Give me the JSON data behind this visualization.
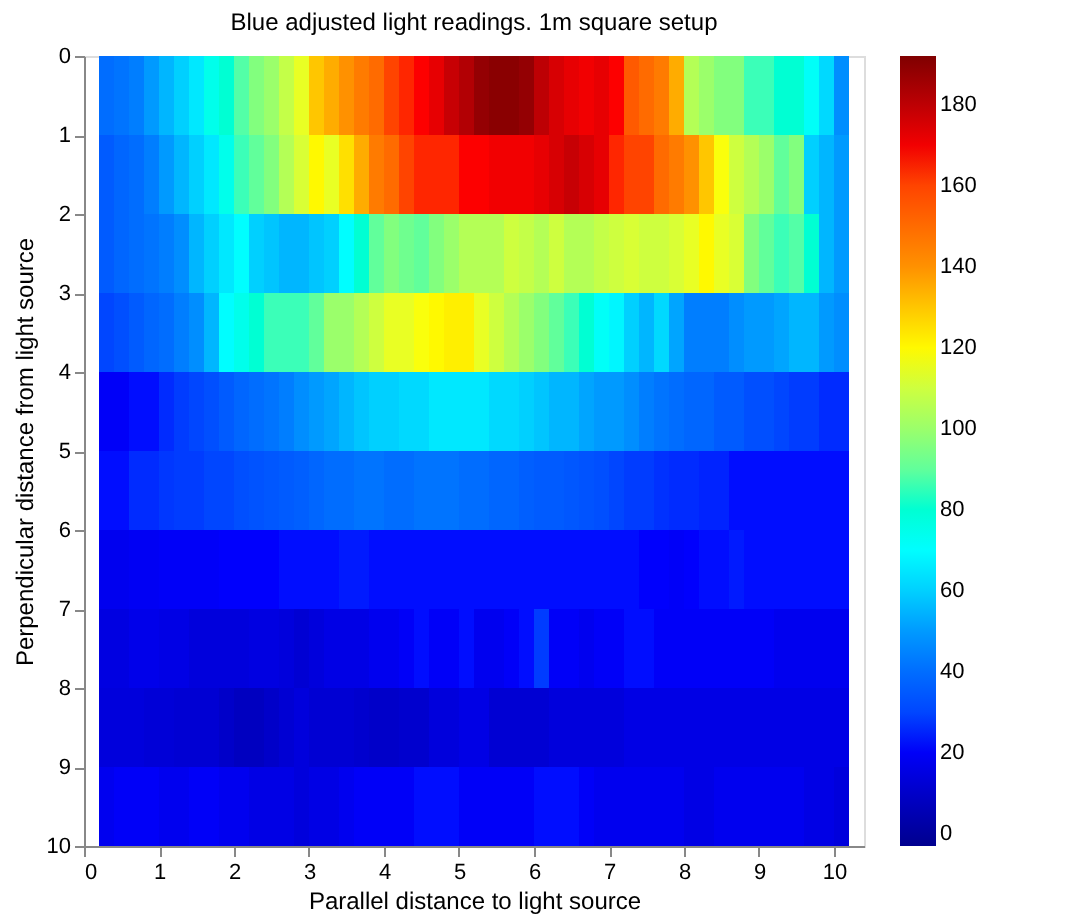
{
  "chart_data": {
    "type": "heatmap",
    "title": "Blue adjusted light readings. 1m square setup",
    "xlabel": "Parallel distance to light source",
    "ylabel": "Perpendicular distance from light source",
    "x": [
      0.3,
      0.5,
      0.7,
      0.9,
      1.1,
      1.3,
      1.5,
      1.7,
      1.9,
      2.1,
      2.3,
      2.5,
      2.7,
      2.9,
      3.1,
      3.3,
      3.5,
      3.7,
      3.9,
      4.1,
      4.3,
      4.5,
      4.7,
      4.9,
      5.1,
      5.3,
      5.5,
      5.7,
      5.9,
      6.1,
      6.3,
      6.5,
      6.7,
      6.9,
      7.1,
      7.3,
      7.5,
      7.7,
      7.9,
      8.1,
      8.3,
      8.5,
      8.7,
      8.9,
      9.1,
      9.3,
      9.5,
      9.7,
      9.9,
      10.1
    ],
    "xlim": [
      0,
      10.4
    ],
    "xticks": [
      0,
      1,
      2,
      3,
      4,
      5,
      6,
      7,
      8,
      9,
      10
    ],
    "ylim": [
      10,
      0
    ],
    "yticks": [
      0,
      1,
      2,
      3,
      4,
      5,
      6,
      7,
      8,
      9,
      10
    ],
    "clim": [
      -3,
      192
    ],
    "cticks": [
      0,
      20,
      40,
      60,
      80,
      100,
      120,
      140,
      160,
      180
    ],
    "cells": [
      [
        40,
        42,
        45,
        50,
        55,
        60,
        65,
        75,
        80,
        88,
        95,
        100,
        108,
        115,
        130,
        135,
        140,
        145,
        150,
        160,
        165,
        168,
        172,
        178,
        182,
        188,
        190,
        190,
        188,
        180,
        175,
        172,
        170,
        172,
        168,
        155,
        150,
        145,
        135,
        105,
        100,
        95,
        95,
        85,
        85,
        80,
        80,
        72,
        62,
        48
      ],
      [
        35,
        38,
        40,
        45,
        50,
        55,
        60,
        65,
        75,
        85,
        90,
        95,
        105,
        112,
        120,
        115,
        125,
        135,
        145,
        150,
        160,
        165,
        165,
        165,
        168,
        168,
        170,
        170,
        170,
        172,
        175,
        178,
        175,
        172,
        165,
        160,
        160,
        150,
        145,
        140,
        130,
        118,
        110,
        105,
        100,
        90,
        95,
        60,
        55,
        50
      ],
      [
        35,
        38,
        40,
        42,
        45,
        48,
        55,
        60,
        65,
        70,
        60,
        58,
        55,
        55,
        58,
        60,
        70,
        80,
        90,
        95,
        92,
        90,
        95,
        100,
        105,
        105,
        105,
        110,
        108,
        105,
        110,
        105,
        105,
        108,
        110,
        112,
        110,
        110,
        112,
        115,
        120,
        115,
        112,
        95,
        90,
        85,
        88,
        80,
        55,
        50
      ],
      [
        30,
        32,
        35,
        38,
        40,
        45,
        48,
        55,
        70,
        75,
        80,
        85,
        85,
        85,
        90,
        100,
        100,
        105,
        110,
        115,
        115,
        118,
        120,
        122,
        122,
        115,
        110,
        105,
        100,
        95,
        90,
        85,
        80,
        72,
        68,
        60,
        55,
        62,
        52,
        45,
        45,
        45,
        48,
        50,
        50,
        52,
        55,
        55,
        50,
        48
      ],
      [
        20,
        20,
        22,
        22,
        25,
        28,
        30,
        32,
        35,
        38,
        40,
        42,
        45,
        48,
        50,
        52,
        55,
        58,
        60,
        60,
        62,
        62,
        65,
        65,
        65,
        65,
        62,
        62,
        60,
        58,
        55,
        55,
        52,
        50,
        50,
        48,
        45,
        42,
        40,
        38,
        38,
        35,
        35,
        32,
        32,
        30,
        28,
        28,
        25,
        25
      ],
      [
        22,
        22,
        25,
        25,
        27,
        28,
        28,
        30,
        30,
        32,
        33,
        34,
        35,
        36,
        38,
        40,
        40,
        42,
        42,
        40,
        40,
        42,
        42,
        42,
        40,
        40,
        38,
        38,
        36,
        35,
        35,
        34,
        33,
        32,
        30,
        28,
        28,
        26,
        25,
        25,
        24,
        24,
        22,
        22,
        22,
        22,
        22,
        22,
        22,
        22
      ],
      [
        18,
        18,
        19,
        19,
        20,
        20,
        20,
        20,
        21,
        21,
        21,
        21,
        22,
        22,
        22,
        22,
        23,
        23,
        22,
        22,
        22,
        22,
        22,
        22,
        22,
        22,
        22,
        22,
        22,
        22,
        22,
        22,
        22,
        22,
        22,
        22,
        21,
        21,
        20,
        21,
        22,
        22,
        23,
        22,
        22,
        22,
        22,
        22,
        22,
        22
      ],
      [
        15,
        15,
        17,
        17,
        16,
        16,
        14,
        14,
        14,
        14,
        15,
        15,
        14,
        12,
        14,
        16,
        16,
        16,
        18,
        18,
        20,
        22,
        20,
        20,
        22,
        18,
        18,
        20,
        22,
        28,
        20,
        20,
        18,
        20,
        20,
        22,
        22,
        20,
        20,
        20,
        20,
        20,
        20,
        20,
        20,
        18,
        18,
        18,
        18,
        18
      ],
      [
        14,
        14,
        14,
        13,
        13,
        12,
        12,
        12,
        10,
        8,
        8,
        10,
        12,
        14,
        12,
        12,
        12,
        11,
        10,
        10,
        11,
        11,
        14,
        14,
        16,
        16,
        12,
        12,
        12,
        12,
        14,
        14,
        14,
        14,
        14,
        16,
        16,
        16,
        16,
        16,
        16,
        16,
        16,
        16,
        16,
        16,
        16,
        16,
        16,
        16
      ],
      [
        18,
        20,
        20,
        20,
        18,
        18,
        20,
        20,
        18,
        18,
        16,
        16,
        16,
        14,
        16,
        16,
        18,
        20,
        20,
        20,
        20,
        22,
        22,
        22,
        20,
        20,
        20,
        20,
        20,
        22,
        22,
        22,
        20,
        18,
        18,
        18,
        18,
        18,
        18,
        16,
        16,
        18,
        18,
        18,
        18,
        18,
        18,
        16,
        16,
        14
      ]
    ]
  }
}
